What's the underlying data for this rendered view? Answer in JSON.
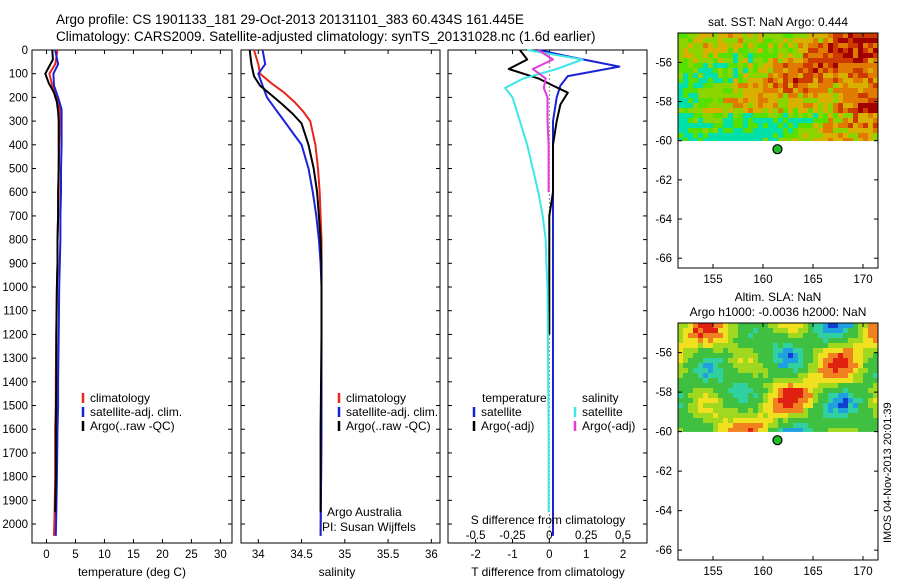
{
  "header": {
    "line1": "Argo profile: CS 1901133_181 29-Oct-2013 20131101_383 60.434S 161.445E",
    "line2": "Climatology: CARS2009. Satellite-adjusted climatology: synTS_20131028.nc (1.6d earlier)"
  },
  "colors": {
    "climatology": "#e8261a",
    "satellite": "#1a22d6",
    "argo": "#000000",
    "sal_satellite": "#3ee6ea",
    "sal_argo": "#e23ad8",
    "marker": "#1fbf2a"
  },
  "stamp": "IMOS 04-Nov-2013 20:01:39",
  "chart_data": [
    {
      "type": "line",
      "id": "temperature",
      "xlabel": "temperature (deg C)",
      "ylabel": "",
      "xlim": [
        -2.5,
        32
      ],
      "ylim": [
        2080,
        0
      ],
      "xticks": [
        0,
        5,
        10,
        15,
        20,
        25,
        30
      ],
      "yticks": [
        0,
        100,
        200,
        300,
        400,
        500,
        600,
        700,
        800,
        900,
        1000,
        1100,
        1200,
        1300,
        1400,
        1500,
        1600,
        1700,
        1800,
        1900,
        2000
      ],
      "legend": {
        "position": "lower-center",
        "entries": [
          {
            "label": "climatology",
            "color": "#e8261a"
          },
          {
            "label": "satellite-adj. clim.",
            "color": "#1a22d6"
          },
          {
            "label": "Argo(..raw -QC)",
            "color": "#000000"
          }
        ]
      },
      "series": [
        {
          "name": "climatology",
          "color": "#e8261a",
          "x": [
            1.9,
            1.5,
            0.5,
            1.0,
            1.8,
            2.3,
            2.3,
            2.2,
            2.1,
            2.1,
            2.0,
            1.9,
            1.9,
            1.8,
            1.7,
            1.6,
            1.6,
            1.5,
            1.5,
            1.4,
            1.3
          ],
          "y": [
            0,
            60,
            100,
            150,
            200,
            250,
            300,
            400,
            500,
            600,
            700,
            800,
            900,
            1000,
            1200,
            1400,
            1500,
            1600,
            1800,
            1950,
            2050
          ]
        },
        {
          "name": "satellite-adj. clim.",
          "color": "#1a22d6",
          "x": [
            1.5,
            2.0,
            1.2,
            1.3,
            2.0,
            2.6,
            2.6,
            2.6,
            2.5,
            2.5,
            2.4,
            2.4,
            2.3,
            2.2,
            2.1,
            2.0,
            2.0,
            1.9,
            1.8,
            1.7,
            1.6
          ],
          "y": [
            0,
            60,
            100,
            150,
            200,
            250,
            300,
            400,
            500,
            600,
            700,
            800,
            900,
            1000,
            1200,
            1400,
            1500,
            1600,
            1800,
            1950,
            2050
          ]
        },
        {
          "name": "Argo",
          "color": "#000000",
          "x": [
            1.0,
            1.1,
            -0.2,
            0.4,
            1.3,
            1.8,
            2.0,
            2.1,
            2.1,
            2.1,
            2.0,
            2.0,
            1.9,
            1.9,
            1.8,
            1.7,
            1.7,
            1.6,
            1.6,
            1.5
          ],
          "y": [
            0,
            40,
            100,
            140,
            180,
            220,
            260,
            300,
            400,
            500,
            600,
            700,
            800,
            900,
            1000,
            1200,
            1400,
            1600,
            1800,
            1950
          ]
        }
      ]
    },
    {
      "type": "line",
      "id": "salinity",
      "xlabel": "salinity",
      "xlim": [
        33.8,
        36.1
      ],
      "ylim": [
        2080,
        0
      ],
      "xticks": [
        34,
        34.5,
        35,
        35.5,
        36
      ],
      "legend": {
        "position": "lower-center",
        "entries": [
          {
            "label": "climatology",
            "color": "#e8261a"
          },
          {
            "label": "satellite-adj. clim.",
            "color": "#1a22d6"
          },
          {
            "label": "Argo(..raw -QC)",
            "color": "#000000"
          }
        ]
      },
      "annotation": [
        "Argo Australia",
        "PI: Susan Wijffels"
      ],
      "series": [
        {
          "name": "climatology",
          "color": "#e8261a",
          "x": [
            33.95,
            34.0,
            34.02,
            34.15,
            34.3,
            34.42,
            34.52,
            34.6,
            34.66,
            34.69,
            34.71,
            34.72,
            34.73,
            34.73,
            34.73,
            34.73,
            34.73,
            34.72
          ],
          "y": [
            0,
            60,
            100,
            140,
            180,
            220,
            260,
            300,
            400,
            500,
            600,
            700,
            800,
            900,
            1000,
            1200,
            1600,
            2050
          ]
        },
        {
          "name": "satellite-adj. clim.",
          "color": "#1a22d6",
          "x": [
            34.05,
            34.08,
            34.0,
            34.05,
            34.1,
            34.2,
            34.3,
            34.4,
            34.5,
            34.58,
            34.63,
            34.67,
            34.7,
            34.72,
            34.73,
            34.73,
            34.73,
            34.72
          ],
          "y": [
            0,
            60,
            100,
            150,
            200,
            250,
            300,
            350,
            400,
            500,
            600,
            700,
            800,
            900,
            1000,
            1200,
            1600,
            2050
          ]
        },
        {
          "name": "Argo",
          "color": "#000000",
          "x": [
            33.9,
            33.92,
            33.95,
            34.02,
            34.15,
            34.28,
            34.4,
            34.5,
            34.58,
            34.64,
            34.68,
            34.7,
            34.72,
            34.73,
            34.73,
            34.73,
            34.72,
            34.72
          ],
          "y": [
            0,
            60,
            110,
            150,
            190,
            230,
            270,
            310,
            400,
            500,
            600,
            700,
            800,
            900,
            1000,
            1200,
            1600,
            1950
          ]
        }
      ]
    },
    {
      "type": "line",
      "id": "difference",
      "xlabel": "T difference from climatology",
      "xlabel_top": "S difference from climatology",
      "xlim": [
        -2.75,
        2.65
      ],
      "ylim": [
        2080,
        0
      ],
      "xticks": [
        -2,
        -1,
        0,
        1,
        2
      ],
      "sticks": [
        -0.5,
        -0.25,
        0,
        0.25,
        0.5
      ],
      "legend": {
        "position": "lower-center",
        "groups": [
          {
            "title": "temperature",
            "entries": [
              {
                "label": "satellite",
                "color": "#1a22d6"
              },
              {
                "label": "Argo(-adj)",
                "color": "#000000"
              }
            ]
          },
          {
            "title": "salinity",
            "entries": [
              {
                "label": "satellite",
                "color": "#3ee6ea"
              },
              {
                "label": "Argo(-adj)",
                "color": "#e23ad8"
              }
            ]
          }
        ]
      },
      "series": [
        {
          "name": "temperature satellite",
          "color": "#1a22d6",
          "x": [
            -0.3,
            0.6,
            1.9,
            0.5,
            0.3,
            0.2,
            0.1,
            0.1,
            0.1,
            0.1,
            0.1,
            0.1,
            0.1,
            0.1,
            0.1,
            0.1
          ],
          "y": [
            0,
            30,
            70,
            110,
            150,
            200,
            300,
            400,
            600,
            800,
            1000,
            1200,
            1400,
            1600,
            1800,
            2050
          ]
        },
        {
          "name": "temperature Argo",
          "color": "#000000",
          "x": [
            -0.8,
            -0.6,
            -1.1,
            -0.3,
            0.1,
            0.5,
            0.3,
            0.2,
            0.1,
            0.1,
            0.1,
            0.0,
            0.0,
            0.0,
            0.0,
            0.0,
            0.0
          ],
          "y": [
            0,
            40,
            80,
            120,
            150,
            180,
            230,
            300,
            400,
            500,
            600,
            700,
            800,
            900,
            1000,
            1100,
            1200
          ]
        },
        {
          "name": "salinity satellite",
          "color": "#3ee6ea",
          "x": [
            -0.6,
            0.9,
            0.2,
            -0.7,
            -1.2,
            -1.0,
            -0.8,
            -0.6,
            -0.45,
            -0.3,
            -0.18,
            -0.1,
            -0.08,
            -0.05,
            -0.04,
            -0.03,
            -0.02,
            -0.02
          ],
          "y": [
            0,
            40,
            80,
            120,
            160,
            200,
            300,
            400,
            500,
            600,
            700,
            800,
            900,
            1000,
            1200,
            1400,
            1600,
            1950
          ]
        },
        {
          "name": "salinity Argo",
          "color": "#e23ad8",
          "x": [
            -0.3,
            0.1,
            -0.45,
            -0.1,
            -0.15,
            -0.05,
            -0.05,
            -0.02,
            -0.02,
            -0.02
          ],
          "y": [
            0,
            40,
            80,
            120,
            160,
            200,
            300,
            400,
            500,
            600
          ]
        }
      ]
    },
    {
      "type": "heatmap",
      "id": "sst_map",
      "title": "sat. SST: NaN Argo: 0.444",
      "xlim": [
        151.5,
        171.5
      ],
      "ylim": [
        -66.5,
        -54.5
      ],
      "xticks": [
        155,
        160,
        165,
        170
      ],
      "yticks": [
        -56,
        -58,
        -60,
        -62,
        -64,
        -66
      ],
      "marker": {
        "lon": 161.445,
        "lat": -60.434
      },
      "data_extent_lat_min": -60
    },
    {
      "type": "heatmap",
      "id": "sla_map",
      "title": "Altim. SLA: NaN",
      "subtitle": "Argo h1000: -0.0036 h2000: NaN",
      "xlim": [
        151.5,
        171.5
      ],
      "ylim": [
        -66.5,
        -54.5
      ],
      "xticks": [
        155,
        160,
        165,
        170
      ],
      "yticks": [
        -56,
        -58,
        -60,
        -62,
        -64,
        -66
      ],
      "marker": {
        "lon": 161.445,
        "lat": -60.434
      },
      "data_extent_lat_min": -60
    }
  ]
}
